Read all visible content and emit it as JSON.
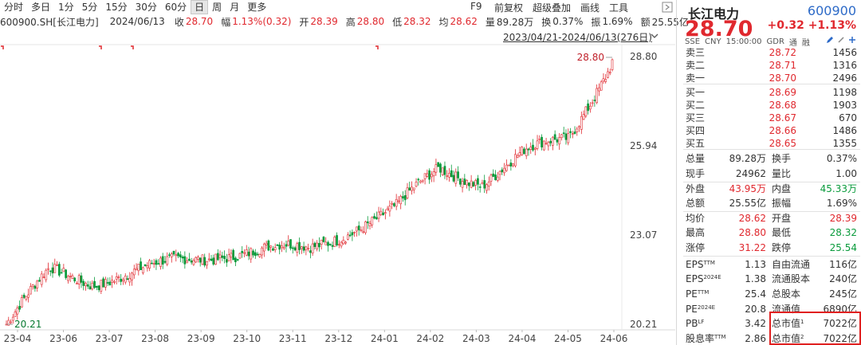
{
  "toolbar": {
    "tabs": [
      "分时",
      "多日",
      "1分",
      "5分",
      "15分",
      "30分",
      "60分",
      "日",
      "周",
      "月",
      "更多"
    ],
    "active_tab": "日",
    "f9": "F9",
    "tools": [
      "前复权",
      "超级叠加",
      "画线",
      "工具"
    ]
  },
  "info_line": {
    "symbol": "600900.SH[长江电力]",
    "date": "2024/06/13",
    "close_label": "收",
    "close": "28.70",
    "amp_label": "幅",
    "amp": "1.13%(0.32)",
    "open_label": "开",
    "open": "28.39",
    "high_label": "高",
    "high": "28.80",
    "low_label": "低",
    "low": "28.32",
    "avg_label": "均",
    "avg": "28.62",
    "vol_label": "量",
    "vol": "89.28万",
    "turnover_label": "换",
    "turnover": "0.37%",
    "swing_label": "振",
    "swing": "1.69%",
    "amount_label": "额",
    "amount": "25.55亿"
  },
  "range_label": "2023/04/21-2024/06/13(276日)",
  "chart_data": {
    "type": "candlestick",
    "title": "",
    "y_ticks": [
      "28.80",
      "25.94",
      "23.07",
      "20.21"
    ],
    "ylim": [
      20.21,
      28.8
    ],
    "x_ticks": [
      "23-04",
      "23-06",
      "23-07",
      "23-08",
      "23-09",
      "23-10",
      "23-11",
      "23-12",
      "24-01",
      "24-02",
      "24-03",
      "24-04",
      "24-05",
      "24-06"
    ],
    "annotations": [
      {
        "text": "28.80",
        "kind": "period-high"
      },
      {
        "text": "20.21",
        "kind": "period-low"
      }
    ],
    "up_color": "#e0282e",
    "down_color": "#0a9b3c",
    "close_path": [
      [
        "23-04",
        20.21
      ],
      [
        "23-05",
        21.9
      ],
      [
        "23-06",
        21.6
      ],
      [
        "23-07",
        21.9
      ],
      [
        "23-08",
        22.2
      ],
      [
        "23-09",
        22.5
      ],
      [
        "23-10",
        22.6
      ],
      [
        "23-11",
        22.6
      ],
      [
        "23-12",
        23.3
      ],
      [
        "24-01",
        23.9
      ],
      [
        "24-02",
        25.2
      ],
      [
        "24-03",
        24.8
      ],
      [
        "24-04",
        25.7
      ],
      [
        "24-05",
        26.2
      ],
      [
        "24-06",
        28.7
      ]
    ]
  },
  "quote": {
    "name": "长江电力",
    "code": "600900",
    "price": "28.70",
    "change": "+0.32",
    "change_pct": "+1.13%",
    "market": "SSE",
    "currency": "CNY",
    "time": "15:00:00",
    "gdr": "GDR",
    "tong": "通",
    "rong": "融",
    "orderbook": [
      {
        "label": "卖三",
        "price": "28.72",
        "vol": "1456"
      },
      {
        "label": "卖二",
        "price": "28.71",
        "vol": "1316"
      },
      {
        "label": "卖一",
        "price": "28.70",
        "vol": "2496"
      },
      {
        "label": "买一",
        "price": "28.69",
        "vol": "1198"
      },
      {
        "label": "买二",
        "price": "28.68",
        "vol": "1903"
      },
      {
        "label": "买三",
        "price": "28.67",
        "vol": "670"
      },
      {
        "label": "买四",
        "price": "28.66",
        "vol": "1486"
      },
      {
        "label": "买五",
        "price": "28.65",
        "vol": "1355"
      }
    ],
    "stats1": [
      {
        "l1": "总量",
        "v1": "89.28万",
        "c1": "mute",
        "l2": "换手",
        "v2": "0.37%",
        "c2": "mute"
      },
      {
        "l1": "现手",
        "v1": "24962",
        "c1": "mute",
        "l2": "量比",
        "v2": "1.00",
        "c2": "mute"
      },
      {
        "l1": "外盘",
        "v1": "43.95万",
        "c1": "up",
        "l2": "内盘",
        "v2": "45.33万",
        "c2": "down"
      },
      {
        "l1": "总额",
        "v1": "25.55亿",
        "c1": "mute",
        "l2": "振幅",
        "v2": "1.69%",
        "c2": "mute"
      },
      {
        "l1": "均价",
        "v1": "28.62",
        "c1": "up",
        "l2": "开盘",
        "v2": "28.39",
        "c2": "up"
      },
      {
        "l1": "最高",
        "v1": "28.80",
        "c1": "up",
        "l2": "最低",
        "v2": "28.32",
        "c2": "down"
      },
      {
        "l1": "涨停",
        "v1": "31.22",
        "c1": "up",
        "l2": "跌停",
        "v2": "25.54",
        "c2": "down"
      }
    ],
    "stats2": [
      {
        "l1": "EPS",
        "s1": "TTM",
        "v1": "1.13",
        "l2": "自由流通",
        "s2": "",
        "v2": "116亿"
      },
      {
        "l1": "EPS",
        "s1": "2024E",
        "v1": "1.38",
        "l2": "流通股本",
        "s2": "",
        "v2": "240亿"
      },
      {
        "l1": "PE",
        "s1": "TTM",
        "v1": "25.4",
        "l2": "总股本",
        "s2": "",
        "v2": "245亿"
      },
      {
        "l1": "PE",
        "s1": "2024E",
        "v1": "20.8",
        "l2": "流通值",
        "s2": "",
        "v2": "6890亿"
      },
      {
        "l1": "PB",
        "s1": "LF",
        "v1": "3.42",
        "l2": "总市值",
        "s2": "1",
        "v2": "7022亿"
      },
      {
        "l1": "股息率",
        "s1": "TTM",
        "v1": "2.86",
        "l2": "总市值",
        "s2": "2",
        "v2": "7022亿"
      }
    ]
  }
}
